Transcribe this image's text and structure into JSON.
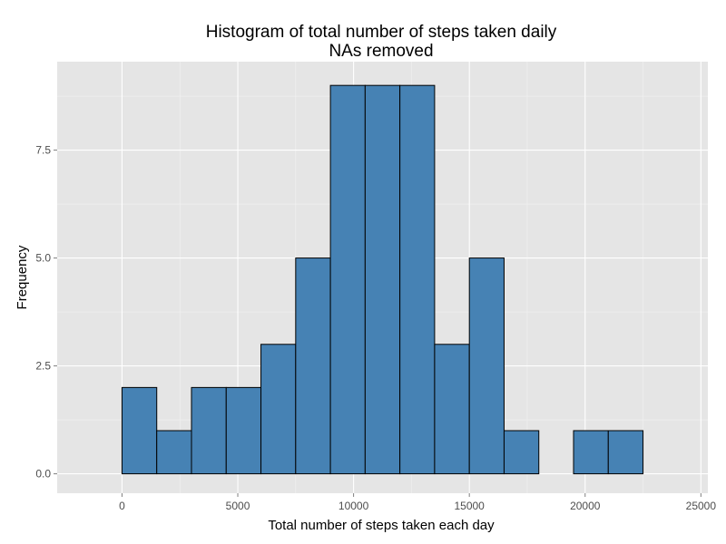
{
  "chart_data": {
    "type": "bar",
    "title": "Histogram of total number of steps taken daily",
    "subtitle": "NAs removed",
    "xlabel": "Total number of steps taken each day",
    "ylabel": "Frequency",
    "xlim": [
      -2800,
      25300
    ],
    "ylim": [
      -0.45,
      9.55
    ],
    "x_ticks": [
      0,
      5000,
      10000,
      15000,
      20000,
      25000
    ],
    "x_tick_labels": [
      "0",
      "5000",
      "10000",
      "15000",
      "20000",
      "25000"
    ],
    "y_ticks": [
      0,
      2.5,
      5,
      7.5
    ],
    "y_tick_labels": [
      "0.0",
      "2.5",
      "5.0",
      "7.5"
    ],
    "bin_width": 1500,
    "bin_starts": [
      -1500,
      0,
      1500,
      3000,
      4500,
      6000,
      7500,
      9000,
      10500,
      12000,
      13500,
      15000,
      16500,
      18000,
      19500,
      21000,
      22500
    ],
    "values": [
      0,
      2,
      1,
      2,
      2,
      3,
      5,
      9,
      9,
      9,
      3,
      5,
      1,
      0,
      1,
      1,
      0
    ],
    "bar_fill": "#4682b4",
    "bar_stroke": "#000000",
    "panel_background": "#e5e5e5",
    "grid": true
  }
}
